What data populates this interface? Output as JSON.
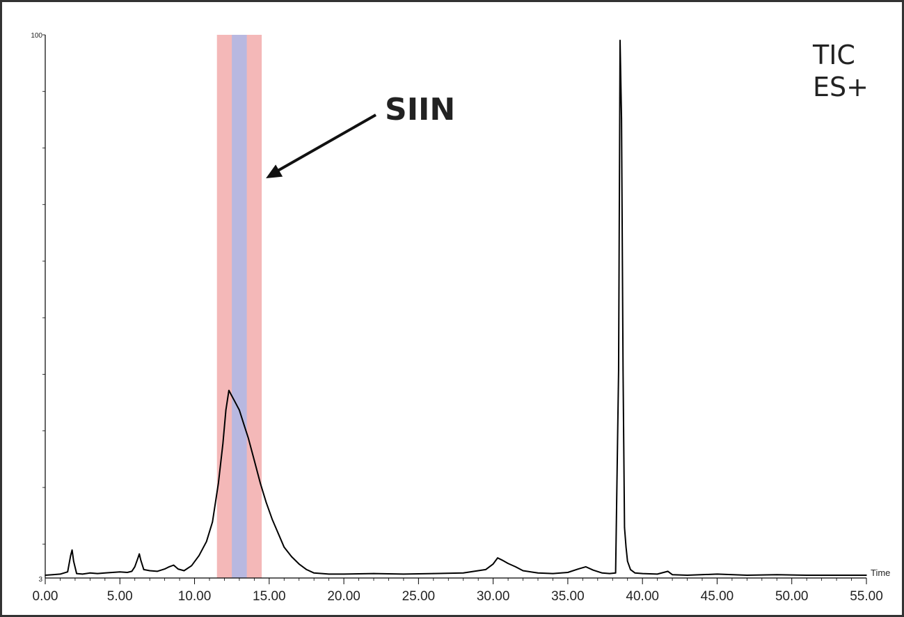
{
  "chart_data": {
    "type": "line",
    "title": "",
    "corner_labels": [
      "TIC",
      "ES+"
    ],
    "xlabel": "Time",
    "ylabel": "",
    "xlim": [
      0,
      55
    ],
    "ylim": [
      3,
      100
    ],
    "x_ticks": [
      0,
      5,
      10,
      15,
      20,
      25,
      30,
      35,
      40,
      45,
      50,
      55
    ],
    "x_tick_labels": [
      "0.00",
      "5.00",
      "10.00",
      "15.00",
      "20.00",
      "25.00",
      "30.00",
      "35.00",
      "40.00",
      "45.00",
      "50.00",
      "55.00"
    ],
    "y_tick_labels": [
      "100",
      "3"
    ],
    "grid": false,
    "annotation": {
      "text": "SIIN",
      "points_to_x": 14.5
    },
    "highlight_regions": [
      {
        "x": [
          11.5,
          14.5
        ],
        "color": "#f4b8b8"
      },
      {
        "x": [
          12.5,
          13.5
        ],
        "color": "#b8b8e0"
      }
    ],
    "series": [
      {
        "color": "#000000",
        "x": [
          0,
          0.5,
          1.0,
          1.5,
          1.7,
          1.8,
          1.9,
          2.1,
          2.5,
          3.0,
          3.5,
          4.0,
          4.5,
          5.0,
          5.5,
          5.8,
          6.0,
          6.2,
          6.3,
          6.4,
          6.6,
          7.0,
          7.5,
          8.0,
          8.3,
          8.6,
          8.9,
          9.3,
          9.8,
          10.3,
          10.8,
          11.2,
          11.6,
          11.9,
          12.1,
          12.3,
          12.5,
          12.7,
          13.0,
          13.3,
          13.6,
          14.0,
          14.4,
          14.8,
          15.2,
          15.6,
          16.0,
          16.5,
          17.0,
          17.5,
          18.0,
          19.0,
          20.0,
          22.0,
          24.0,
          26.0,
          28.0,
          29.5,
          30.0,
          30.3,
          30.6,
          31.0,
          31.5,
          32.0,
          33.0,
          34.0,
          35.0,
          35.7,
          36.2,
          36.7,
          37.3,
          37.8,
          38.2,
          38.4,
          38.5,
          38.6,
          38.7,
          38.8,
          38.9,
          39.0,
          39.2,
          39.5,
          40.0,
          41.0,
          41.7,
          42.0,
          43.0,
          45.0,
          47.0,
          49.0,
          51.0,
          53.0,
          55.0
        ],
        "y": [
          3.5,
          3.6,
          3.7,
          4.1,
          7.0,
          8.0,
          6.0,
          3.8,
          3.7,
          3.9,
          3.8,
          3.9,
          4.0,
          4.1,
          4.0,
          4.2,
          5.0,
          6.5,
          7.3,
          6.2,
          4.5,
          4.3,
          4.2,
          4.6,
          5.0,
          5.3,
          4.6,
          4.3,
          5.2,
          7.0,
          9.5,
          13.0,
          20.0,
          27.0,
          33.0,
          36.5,
          35.5,
          34.5,
          33.0,
          30.5,
          28.0,
          24.0,
          20.0,
          16.5,
          13.5,
          11.0,
          8.5,
          6.8,
          5.5,
          4.5,
          3.9,
          3.7,
          3.7,
          3.8,
          3.7,
          3.8,
          3.9,
          4.5,
          5.5,
          6.6,
          6.2,
          5.6,
          5.0,
          4.3,
          3.9,
          3.8,
          4.0,
          4.6,
          5.0,
          4.4,
          3.9,
          3.8,
          3.9,
          40.0,
          99.0,
          85.0,
          40.0,
          12.0,
          8.5,
          6.0,
          4.5,
          3.9,
          3.8,
          3.7,
          4.2,
          3.6,
          3.5,
          3.7,
          3.5,
          3.6,
          3.5,
          3.5,
          3.5
        ]
      }
    ]
  }
}
